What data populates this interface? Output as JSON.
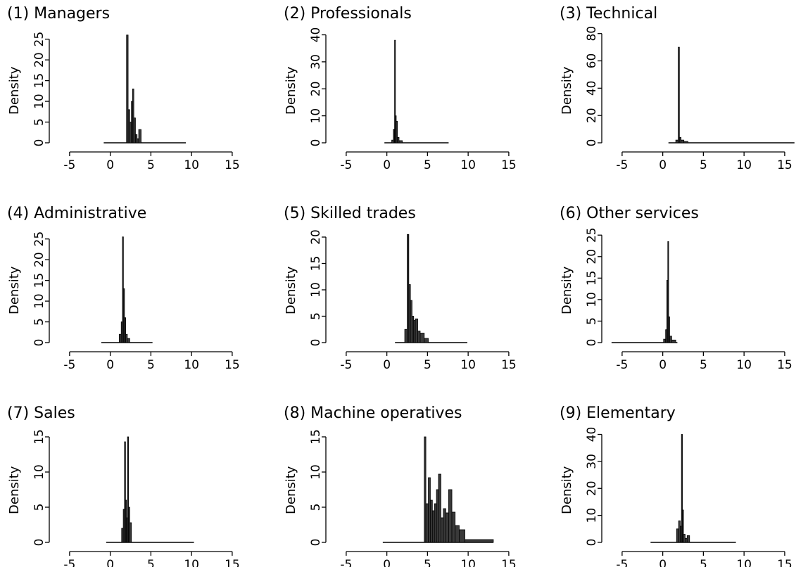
{
  "chart_data": [
    {
      "type": "bar",
      "title": "(1) Managers",
      "ylabel": "Density",
      "xlim": [
        -7.5,
        17
      ],
      "xticks": [
        -5,
        0,
        5,
        10,
        15
      ],
      "ylim": [
        0,
        28
      ],
      "yticks": [
        0,
        5,
        10,
        15,
        20,
        25
      ],
      "baseline_range": [
        -0.8,
        9.3
      ],
      "bars": [
        {
          "x0": 2.0,
          "x1": 2.2,
          "y": 26
        },
        {
          "x0": 2.2,
          "x1": 2.4,
          "y": 8
        },
        {
          "x0": 2.4,
          "x1": 2.6,
          "y": 5
        },
        {
          "x0": 2.6,
          "x1": 2.75,
          "y": 10
        },
        {
          "x0": 2.75,
          "x1": 2.9,
          "y": 13
        },
        {
          "x0": 2.9,
          "x1": 3.1,
          "y": 6
        },
        {
          "x0": 3.1,
          "x1": 3.3,
          "y": 2
        },
        {
          "x0": 3.3,
          "x1": 3.5,
          "y": 1
        },
        {
          "x0": 3.5,
          "x1": 3.8,
          "y": 3.2
        }
      ]
    },
    {
      "type": "bar",
      "title": "(2) Professionals",
      "ylabel": "Density",
      "xlim": [
        -7.5,
        17
      ],
      "xticks": [
        -5,
        0,
        5,
        10,
        15
      ],
      "ylim": [
        0,
        43
      ],
      "yticks": [
        0,
        10,
        20,
        30,
        40
      ],
      "baseline_range": [
        -0.3,
        7.6
      ],
      "bars": [
        {
          "x0": 0.6,
          "x1": 0.8,
          "y": 1
        },
        {
          "x0": 0.8,
          "x1": 0.95,
          "y": 5
        },
        {
          "x0": 0.95,
          "x1": 1.05,
          "y": 38
        },
        {
          "x0": 1.05,
          "x1": 1.15,
          "y": 10
        },
        {
          "x0": 1.15,
          "x1": 1.3,
          "y": 8
        },
        {
          "x0": 1.3,
          "x1": 1.5,
          "y": 2
        },
        {
          "x0": 1.5,
          "x1": 1.9,
          "y": 0.8
        }
      ]
    },
    {
      "type": "bar",
      "title": "(3) Technical",
      "ylabel": "Density",
      "xlim": [
        -7.5,
        17
      ],
      "xticks": [
        -5,
        0,
        5,
        10,
        15
      ],
      "ylim": [
        0,
        85
      ],
      "yticks": [
        0,
        20,
        40,
        60,
        80
      ],
      "baseline_range": [
        0.7,
        16.2
      ],
      "bars": [
        {
          "x0": 1.6,
          "x1": 1.9,
          "y": 2
        },
        {
          "x0": 1.9,
          "x1": 2.05,
          "y": 70
        },
        {
          "x0": 2.05,
          "x1": 2.25,
          "y": 4
        },
        {
          "x0": 2.25,
          "x1": 2.6,
          "y": 2
        },
        {
          "x0": 2.6,
          "x1": 3.1,
          "y": 1
        }
      ]
    },
    {
      "type": "bar",
      "title": "(4) Administrative",
      "ylabel": "Density",
      "xlim": [
        -7.5,
        17
      ],
      "xticks": [
        -5,
        0,
        5,
        10,
        15
      ],
      "ylim": [
        0,
        28
      ],
      "yticks": [
        0,
        5,
        10,
        15,
        20,
        25
      ],
      "baseline_range": [
        -1.1,
        5.2
      ],
      "bars": [
        {
          "x0": 1.1,
          "x1": 1.35,
          "y": 2
        },
        {
          "x0": 1.35,
          "x1": 1.5,
          "y": 5
        },
        {
          "x0": 1.5,
          "x1": 1.62,
          "y": 25.5
        },
        {
          "x0": 1.62,
          "x1": 1.75,
          "y": 13
        },
        {
          "x0": 1.75,
          "x1": 1.9,
          "y": 6
        },
        {
          "x0": 1.9,
          "x1": 2.1,
          "y": 2
        },
        {
          "x0": 2.1,
          "x1": 2.4,
          "y": 1
        }
      ]
    },
    {
      "type": "bar",
      "title": "(5) Skilled trades",
      "ylabel": "Density",
      "xlim": [
        -7.5,
        17
      ],
      "xticks": [
        -5,
        0,
        5,
        10,
        15
      ],
      "ylim": [
        0,
        22
      ],
      "yticks": [
        0,
        5,
        10,
        15,
        20
      ],
      "baseline_range": [
        1.0,
        9.9
      ],
      "bars": [
        {
          "x0": 2.2,
          "x1": 2.5,
          "y": 2.5
        },
        {
          "x0": 2.5,
          "x1": 2.7,
          "y": 20.5
        },
        {
          "x0": 2.7,
          "x1": 2.9,
          "y": 11
        },
        {
          "x0": 2.9,
          "x1": 3.1,
          "y": 8
        },
        {
          "x0": 3.1,
          "x1": 3.3,
          "y": 5
        },
        {
          "x0": 3.3,
          "x1": 3.5,
          "y": 4.2
        },
        {
          "x0": 3.5,
          "x1": 3.8,
          "y": 4.5
        },
        {
          "x0": 3.8,
          "x1": 4.1,
          "y": 2.2
        },
        {
          "x0": 4.1,
          "x1": 4.6,
          "y": 1.8
        },
        {
          "x0": 4.6,
          "x1": 5.1,
          "y": 0.8
        }
      ]
    },
    {
      "type": "bar",
      "title": "(6) Other services",
      "ylabel": "Density",
      "xlim": [
        -7.5,
        17
      ],
      "xticks": [
        -5,
        0,
        5,
        10,
        15
      ],
      "ylim": [
        0,
        27
      ],
      "yticks": [
        0,
        5,
        10,
        15,
        20,
        25
      ],
      "baseline_range": [
        -6.3,
        1.8
      ],
      "bars": [
        {
          "x0": 0.1,
          "x1": 0.35,
          "y": 0.8
        },
        {
          "x0": 0.35,
          "x1": 0.5,
          "y": 3
        },
        {
          "x0": 0.5,
          "x1": 0.62,
          "y": 14.5
        },
        {
          "x0": 0.62,
          "x1": 0.72,
          "y": 23.5
        },
        {
          "x0": 0.72,
          "x1": 0.85,
          "y": 6
        },
        {
          "x0": 0.85,
          "x1": 1.1,
          "y": 1.5
        },
        {
          "x0": 1.1,
          "x1": 1.6,
          "y": 0.6
        }
      ]
    },
    {
      "type": "bar",
      "title": "(7) Sales",
      "ylabel": "Density",
      "xlim": [
        -7.5,
        17
      ],
      "xticks": [
        -5,
        0,
        5,
        10,
        15
      ],
      "ylim": [
        0,
        16.5
      ],
      "yticks": [
        0,
        5,
        10,
        15
      ],
      "baseline_range": [
        -0.5,
        10.3
      ],
      "bars": [
        {
          "x0": 1.4,
          "x1": 1.6,
          "y": 2
        },
        {
          "x0": 1.6,
          "x1": 1.75,
          "y": 4.7
        },
        {
          "x0": 1.75,
          "x1": 1.88,
          "y": 14.3
        },
        {
          "x0": 1.88,
          "x1": 2.0,
          "y": 6
        },
        {
          "x0": 2.0,
          "x1": 2.12,
          "y": 3.5
        },
        {
          "x0": 2.12,
          "x1": 2.25,
          "y": 15
        },
        {
          "x0": 2.25,
          "x1": 2.4,
          "y": 5
        },
        {
          "x0": 2.4,
          "x1": 2.6,
          "y": 2.8
        }
      ]
    },
    {
      "type": "bar",
      "title": "(8) Machine operatives",
      "ylabel": "Density",
      "xlim": [
        -7.5,
        17
      ],
      "xticks": [
        -5,
        0,
        5,
        10,
        15
      ],
      "ylim": [
        0,
        16.5
      ],
      "yticks": [
        0,
        5,
        10,
        15
      ],
      "baseline_range": [
        -0.5,
        13.1
      ],
      "bars": [
        {
          "x0": 4.6,
          "x1": 4.8,
          "y": 15
        },
        {
          "x0": 4.8,
          "x1": 5.1,
          "y": 5.5
        },
        {
          "x0": 5.1,
          "x1": 5.35,
          "y": 9.2
        },
        {
          "x0": 5.35,
          "x1": 5.6,
          "y": 6
        },
        {
          "x0": 5.6,
          "x1": 5.85,
          "y": 4.5
        },
        {
          "x0": 5.85,
          "x1": 6.1,
          "y": 5.5
        },
        {
          "x0": 6.1,
          "x1": 6.35,
          "y": 7.5
        },
        {
          "x0": 6.35,
          "x1": 6.65,
          "y": 9.7
        },
        {
          "x0": 6.65,
          "x1": 6.95,
          "y": 3.5
        },
        {
          "x0": 6.95,
          "x1": 7.25,
          "y": 4.8
        },
        {
          "x0": 7.25,
          "x1": 7.6,
          "y": 4.2
        },
        {
          "x0": 7.6,
          "x1": 8.0,
          "y": 7.5
        },
        {
          "x0": 8.0,
          "x1": 8.4,
          "y": 4.3
        },
        {
          "x0": 8.4,
          "x1": 8.9,
          "y": 2.4
        },
        {
          "x0": 8.9,
          "x1": 9.6,
          "y": 1.8
        },
        {
          "x0": 9.6,
          "x1": 13.1,
          "y": 0.4
        }
      ]
    },
    {
      "type": "bar",
      "title": "(9) Elementary",
      "ylabel": "Density",
      "xlim": [
        -7.5,
        17
      ],
      "xticks": [
        -5,
        0,
        5,
        10,
        15
      ],
      "ylim": [
        0,
        43
      ],
      "yticks": [
        0,
        10,
        20,
        30,
        40
      ],
      "baseline_range": [
        -1.5,
        9.0
      ],
      "bars": [
        {
          "x0": 1.7,
          "x1": 1.95,
          "y": 5
        },
        {
          "x0": 1.95,
          "x1": 2.15,
          "y": 8
        },
        {
          "x0": 2.15,
          "x1": 2.3,
          "y": 6
        },
        {
          "x0": 2.3,
          "x1": 2.42,
          "y": 40
        },
        {
          "x0": 2.42,
          "x1": 2.55,
          "y": 12
        },
        {
          "x0": 2.55,
          "x1": 2.75,
          "y": 3
        },
        {
          "x0": 2.75,
          "x1": 3.0,
          "y": 1.5
        },
        {
          "x0": 3.0,
          "x1": 3.3,
          "y": 2.5
        }
      ]
    }
  ]
}
